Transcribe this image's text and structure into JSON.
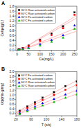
{
  "chart_data": [
    {
      "type": "scatter",
      "title": "A",
      "x_label": "Ce(mg/L)",
      "y_label": "Ce/qe(g/L)",
      "xlim": [
        -5,
        260
      ],
      "ylim": [
        0,
        1.8
      ],
      "xticks": [
        0,
        50,
        100,
        150,
        200,
        250
      ],
      "yticks": [
        {
          "value": 0.0,
          "label": "0.0"
        },
        0.2,
        0.4,
        0.6,
        0.8,
        {
          "value": 1.0,
          "label": "1.0"
        },
        1.2,
        1.4,
        1.6,
        1.8
      ],
      "legend": "upper left",
      "series": [
        {
          "name": "30°C Raw activated carbon",
          "color": "black",
          "marker": "square",
          "x": [
            5,
            10,
            25,
            50,
            100,
            150,
            200,
            250
          ],
          "values": [
            0.02,
            0.04,
            0.09,
            0.19,
            0.42,
            0.68,
            0.98,
            1.55
          ],
          "fit": {
            "color": "#ffaaaa",
            "x": [
              -5,
              260
            ],
            "y": [
              -0.102634,
              1.427044
            ]
          }
        },
        {
          "name": "60°C Raw activated carbon",
          "color": "red",
          "marker": "square",
          "x": [
            5,
            10,
            25,
            50,
            100,
            150,
            200,
            250
          ],
          "values": [
            0.02,
            0.04,
            0.08,
            0.17,
            0.38,
            0.62,
            0.9,
            1.45
          ],
          "fit": {
            "color": "#ffaaaa",
            "x": [
              -5,
              260
            ],
            "y": [
              -0.098948,
              1.32234
            ]
          }
        },
        {
          "name": "30°C Fe-activated carbon",
          "color": "blue",
          "marker": "triangle",
          "x": [
            5,
            10,
            25,
            50,
            100,
            150,
            200,
            250
          ],
          "values": [
            0.01,
            0.025,
            0.055,
            0.11,
            0.25,
            0.42,
            0.62,
            1.02
          ],
          "fit": {
            "color": "#ffaaaa",
            "x": [
              -5,
              260
            ],
            "y": [
              -0.076039,
              0.919566
            ]
          }
        },
        {
          "name": "60°C Fe-activated carbon",
          "color": "#00bb00",
          "marker": "triangle",
          "x": [
            5,
            10,
            25,
            50,
            100,
            150,
            200,
            250
          ],
          "values": [
            0.01,
            0.02,
            0.04,
            0.09,
            0.2,
            0.35,
            0.52,
            0.88
          ],
          "fit": {
            "color": "#ffaaaa",
            "x": [
              -5,
              260
            ],
            "y": [
              -0.070193,
              0.782768
            ]
          }
        }
      ]
    },
    {
      "type": "scatter",
      "title": "B",
      "x_label": "T (s/s)",
      "y_label": "t/qt(min·g/mg)",
      "xlim": [
        20,
        180
      ],
      "ylim": [
        0.1,
        2.0
      ],
      "xticks": [
        20,
        60,
        100,
        140,
        180
      ],
      "yticks": [
        0.2,
        0.4,
        0.6,
        0.8,
        {
          "value": 1.0,
          "label": "1.0"
        },
        1.2,
        1.4,
        1.6,
        1.8,
        {
          "value": 2.0,
          "label": "2.0"
        }
      ],
      "legend": "upper left",
      "series": [
        {
          "name": "60°C Fe-activated carbon",
          "color": "black",
          "marker": "square",
          "x": [
            30,
            50,
            70,
            90,
            120,
            150,
            180
          ],
          "values": [
            0.31,
            0.5,
            0.68,
            0.88,
            1.12,
            1.38,
            1.58
          ],
          "fit": {
            "color": "#ffaaaa",
            "x": [
              20,
              180
            ],
            "y": [
              0.250081,
              1.617189
            ]
          }
        },
        {
          "name": "30°C Fe-activated carbon",
          "color": "red",
          "marker": "square",
          "x": [
            30,
            50,
            70,
            90,
            120,
            150,
            180
          ],
          "values": [
            0.27,
            0.44,
            0.6,
            0.78,
            1.0,
            1.22,
            1.42
          ],
          "fit": {
            "color": "#ffaaaa",
            "x": [
              20,
              180
            ],
            "y": [
              0.213989,
              1.445137
            ]
          }
        },
        {
          "name": "60°C Raw activated carbon",
          "color": "blue",
          "marker": "triangle",
          "x": [
            30,
            50,
            70,
            90,
            120,
            150,
            180
          ],
          "values": [
            0.22,
            0.36,
            0.5,
            0.65,
            0.83,
            1.02,
            1.18
          ],
          "fit": {
            "color": "#ffaaaa",
            "x": [
              20,
              180
            ],
            "y": [
              0.173982,
              1.204418
            ]
          }
        },
        {
          "name": "30°C Raw activated carbon",
          "color": "#00bb00",
          "marker": "triangle",
          "x": [
            30,
            50,
            70,
            90,
            120,
            150,
            180
          ],
          "values": [
            0.18,
            0.3,
            0.42,
            0.55,
            0.7,
            0.88,
            1.02
          ],
          "fit": {
            "color": "#ffaaaa",
            "x": [
              20,
              180
            ],
            "y": [
              0.135702,
              1.037544
            ]
          }
        }
      ]
    }
  ]
}
